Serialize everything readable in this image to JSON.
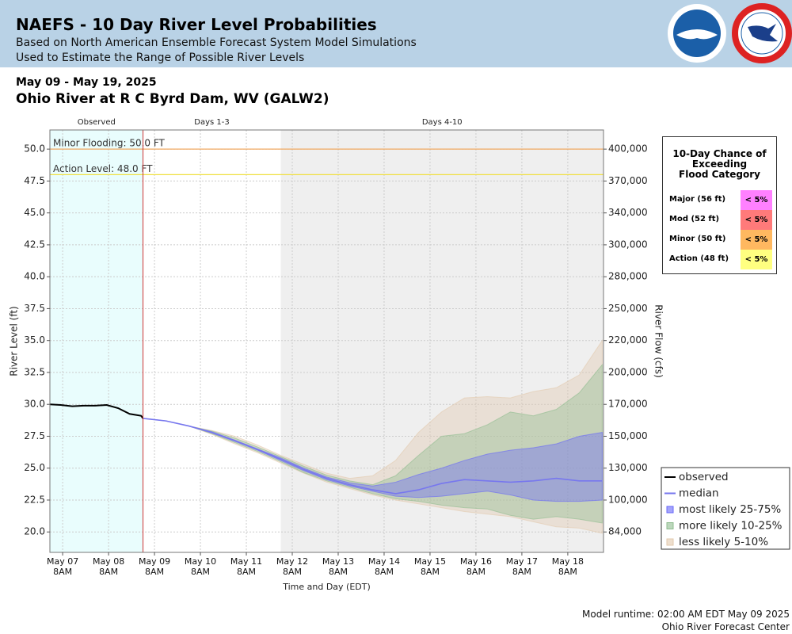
{
  "header": {
    "title": "NAEFS - 10 Day River Level Probabilities",
    "subtitle_1": "Based on North American Ensemble Forecast System Model Simulations",
    "subtitle_2": "Used to Estimate the Range of Possible River Levels"
  },
  "footer": {
    "runtime": "Model runtime: 02:00 AM EDT May 09 2025",
    "center": "Ohio River Forecast Center"
  },
  "chart_data": {
    "type": "line",
    "date_range": "May 09 - May 19, 2025",
    "title": "Ohio River at R C Byrd Dam, WV (GALW2)",
    "xlabel": "Time and Day (EDT)",
    "ylabel": "River Level (ft)",
    "y2label": "River Flow (cfs)",
    "grid": true,
    "legend": "lower right",
    "xlim": [
      "2025-05-07T01:20",
      "2025-05-19T02:40"
    ],
    "ylim": [
      18.4,
      51.5
    ],
    "yticks": [
      {
        "value": 20,
        "label": "20.0"
      },
      {
        "value": 22.5,
        "label": "22.5"
      },
      {
        "value": 25,
        "label": "25.0"
      },
      {
        "value": 27.5,
        "label": "27.5"
      },
      {
        "value": 30,
        "label": "30.0"
      },
      {
        "value": 32.5,
        "label": "32.5"
      },
      {
        "value": 35,
        "label": "35.0"
      },
      {
        "value": 37.5,
        "label": "37.5"
      },
      {
        "value": 40,
        "label": "40.0"
      },
      {
        "value": 42.5,
        "label": "42.5"
      },
      {
        "value": 45,
        "label": "45.0"
      },
      {
        "value": 47.5,
        "label": "47.5"
      },
      {
        "value": 50,
        "label": "50.0"
      }
    ],
    "y2ticks": [
      {
        "value": 84000,
        "label": "84,000"
      },
      {
        "value": 100000,
        "label": "100,000"
      },
      {
        "value": 130000,
        "label": "130,000"
      },
      {
        "value": 150000,
        "label": "150,000"
      },
      {
        "value": 170000,
        "label": "170,000"
      },
      {
        "value": 200000,
        "label": "200,000"
      },
      {
        "value": 220000,
        "label": "220,000"
      },
      {
        "value": 250000,
        "label": "250,000"
      },
      {
        "value": 280000,
        "label": "280,000"
      },
      {
        "value": 300000,
        "label": "300,000"
      },
      {
        "value": 340000,
        "label": "340,000"
      },
      {
        "value": 370000,
        "label": "370,000"
      },
      {
        "value": 400000,
        "label": "400,000"
      }
    ],
    "xticks": [
      {
        "value": "2025-05-07T08:00",
        "label": "May 07\n8AM"
      },
      {
        "value": "2025-05-08T08:00",
        "label": "May 08\n8AM"
      },
      {
        "value": "2025-05-09T08:00",
        "label": "May 09\n8AM"
      },
      {
        "value": "2025-05-10T08:00",
        "label": "May 10\n8AM"
      },
      {
        "value": "2025-05-11T08:00",
        "label": "May 11\n8AM"
      },
      {
        "value": "2025-05-12T08:00",
        "label": "May 12\n8AM"
      },
      {
        "value": "2025-05-13T08:00",
        "label": "May 13\n8AM"
      },
      {
        "value": "2025-05-14T08:00",
        "label": "May 14\n8AM"
      },
      {
        "value": "2025-05-15T08:00",
        "label": "May 15\n8AM"
      },
      {
        "value": "2025-05-16T08:00",
        "label": "May 16\n8AM"
      },
      {
        "value": "2025-05-17T08:00",
        "label": "May 17\n8AM"
      },
      {
        "value": "2025-05-18T08:00",
        "label": "May 18\n8AM"
      }
    ],
    "regions": [
      {
        "label": "Observed",
        "start": "2025-05-07T01:20",
        "end": "2025-05-09T02:00",
        "color": "#e9fdfd"
      },
      {
        "label": "Days 1-3",
        "start": "2025-05-09T02:00",
        "end": "2025-05-12T02:00",
        "color": "#ffffff"
      },
      {
        "label": "Days 4-10",
        "start": "2025-05-12T02:00",
        "end": "2025-05-19T02:40",
        "color": "#efefef"
      }
    ],
    "now": "2025-05-09T02:00",
    "now_color": "#cc3333",
    "thresholds": [
      {
        "label": "Minor Flooding: 50.0 FT",
        "value": 50,
        "color": "#f0a860"
      },
      {
        "label": "Action Level: 48.0 FT",
        "value": 48,
        "color": "#f0e040"
      }
    ],
    "x": [
      "2025-05-09T02:00",
      "2025-05-09T14:00",
      "2025-05-10T02:00",
      "2025-05-10T14:00",
      "2025-05-11T02:00",
      "2025-05-11T14:00",
      "2025-05-12T02:00",
      "2025-05-12T14:00",
      "2025-05-13T02:00",
      "2025-05-13T14:00",
      "2025-05-14T02:00",
      "2025-05-14T14:00",
      "2025-05-15T02:00",
      "2025-05-15T14:00",
      "2025-05-16T02:00",
      "2025-05-16T14:00",
      "2025-05-17T02:00",
      "2025-05-17T14:00",
      "2025-05-18T02:00",
      "2025-05-18T14:00",
      "2025-05-19T02:00"
    ],
    "series": [
      {
        "name": "observed",
        "kind": "line",
        "color": "#000000",
        "x": [
          "2025-05-07T01:20",
          "2025-05-07T07:00",
          "2025-05-07T13:00",
          "2025-05-07T19:00",
          "2025-05-08T01:00",
          "2025-05-08T07:00",
          "2025-05-08T13:00",
          "2025-05-08T19:00",
          "2025-05-09T01:00",
          "2025-05-09T02:00"
        ],
        "values": [
          30.0,
          29.95,
          29.85,
          29.9,
          29.9,
          29.95,
          29.7,
          29.25,
          29.1,
          28.9
        ]
      },
      {
        "name": "median",
        "kind": "line",
        "color": "#7777ee",
        "values": [
          28.9,
          28.7,
          28.3,
          27.8,
          27.15,
          26.45,
          25.7,
          24.9,
          24.2,
          23.7,
          23.3,
          23.0,
          23.3,
          23.8,
          24.1,
          24.0,
          23.9,
          24.0,
          24.2,
          24.0,
          24.0
        ]
      },
      {
        "name": "most likely 25-75%",
        "kind": "band",
        "color": "#6868f8",
        "lower": [
          28.9,
          28.7,
          28.3,
          27.75,
          27.1,
          26.4,
          25.6,
          24.8,
          24.1,
          23.6,
          23.2,
          22.8,
          22.7,
          22.8,
          23.0,
          23.2,
          22.9,
          22.5,
          22.4,
          22.4,
          22.5
        ],
        "upper": [
          28.9,
          28.7,
          28.3,
          27.85,
          27.2,
          26.5,
          25.8,
          25.0,
          24.3,
          23.85,
          23.6,
          23.9,
          24.5,
          25.0,
          25.6,
          26.1,
          26.4,
          26.6,
          26.9,
          27.5,
          27.8
        ]
      },
      {
        "name": "more likely 10-25%",
        "kind": "band",
        "color": "#8fbc8f",
        "lower": [
          28.9,
          28.7,
          28.3,
          27.7,
          27.0,
          26.3,
          25.5,
          24.65,
          24.0,
          23.5,
          23.0,
          22.6,
          22.4,
          22.1,
          21.9,
          21.8,
          21.3,
          21.0,
          21.2,
          21.0,
          20.7
        ],
        "upper": [
          28.9,
          28.7,
          28.3,
          27.9,
          27.35,
          26.65,
          25.9,
          25.15,
          24.45,
          24.0,
          23.7,
          24.4,
          26.0,
          27.5,
          27.7,
          28.4,
          29.4,
          29.1,
          29.6,
          30.9,
          33.1
        ]
      },
      {
        "name": "less likely 5-10%",
        "kind": "band",
        "color": "#e2c9ae",
        "lower": [
          28.9,
          28.7,
          28.3,
          27.65,
          26.9,
          26.2,
          25.4,
          24.6,
          23.9,
          23.4,
          22.9,
          22.5,
          22.2,
          21.9,
          21.6,
          21.4,
          21.2,
          20.8,
          20.4,
          20.3,
          19.9
        ],
        "upper": [
          28.9,
          28.7,
          28.3,
          27.95,
          27.5,
          26.8,
          26.0,
          25.3,
          24.6,
          24.2,
          24.4,
          25.6,
          27.8,
          29.4,
          30.5,
          30.6,
          30.5,
          31.0,
          31.3,
          32.3,
          35.0
        ]
      }
    ],
    "chance_table": {
      "title": "10-Day Chance of\nExceeding\nFlood Category",
      "rows": [
        {
          "label": "Major (56 ft)",
          "value": "< 5%",
          "color": "#ff80ff"
        },
        {
          "label": "Mod (52 ft)",
          "value": "< 5%",
          "color": "#ff7a7a"
        },
        {
          "label": "Minor (50 ft)",
          "value": "< 5%",
          "color": "#ffb860"
        },
        {
          "label": "Action (48 ft)",
          "value": "< 5%",
          "color": "#ffff80"
        }
      ]
    }
  }
}
